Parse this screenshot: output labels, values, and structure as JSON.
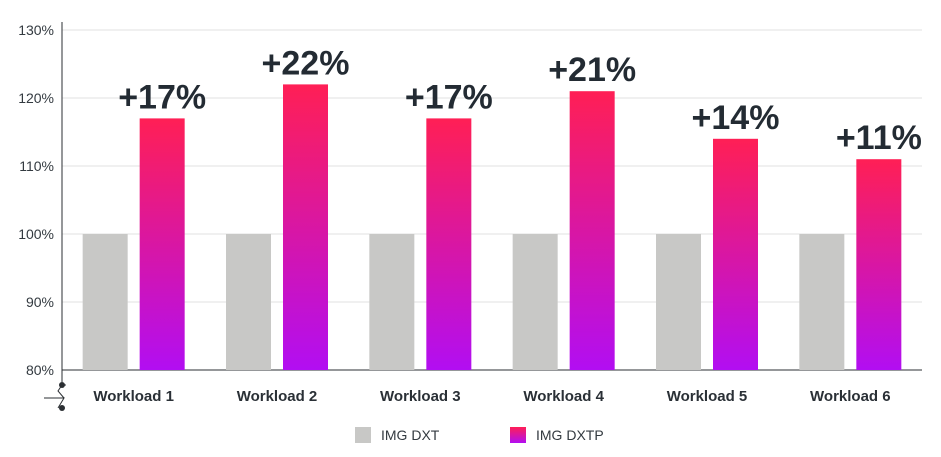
{
  "chart_data": {
    "type": "bar",
    "categories": [
      "Workload 1",
      "Workload 2",
      "Workload 3",
      "Workload 4",
      "Workload 5",
      "Workload 6"
    ],
    "series": [
      {
        "name": "IMG DXT",
        "values": [
          100,
          100,
          100,
          100,
          100,
          100
        ],
        "color": "#c8c8c6"
      },
      {
        "name": "IMG DXTP",
        "values": [
          117,
          122,
          117,
          121,
          114,
          111
        ],
        "color_top": "#ff1f55",
        "color_bottom": "#b20ef2"
      }
    ],
    "data_labels": [
      "+17%",
      "+22%",
      "+17%",
      "+21%",
      "+14%",
      "+11%"
    ],
    "yticks": [
      "80%",
      "90%",
      "100%",
      "110%",
      "120%",
      "130%"
    ],
    "ytick_values": [
      80,
      90,
      100,
      110,
      120,
      130
    ],
    "ylim": [
      80,
      130
    ],
    "grid": true,
    "legend_position": "bottom-center",
    "title": "",
    "xlabel": "",
    "ylabel": ""
  }
}
